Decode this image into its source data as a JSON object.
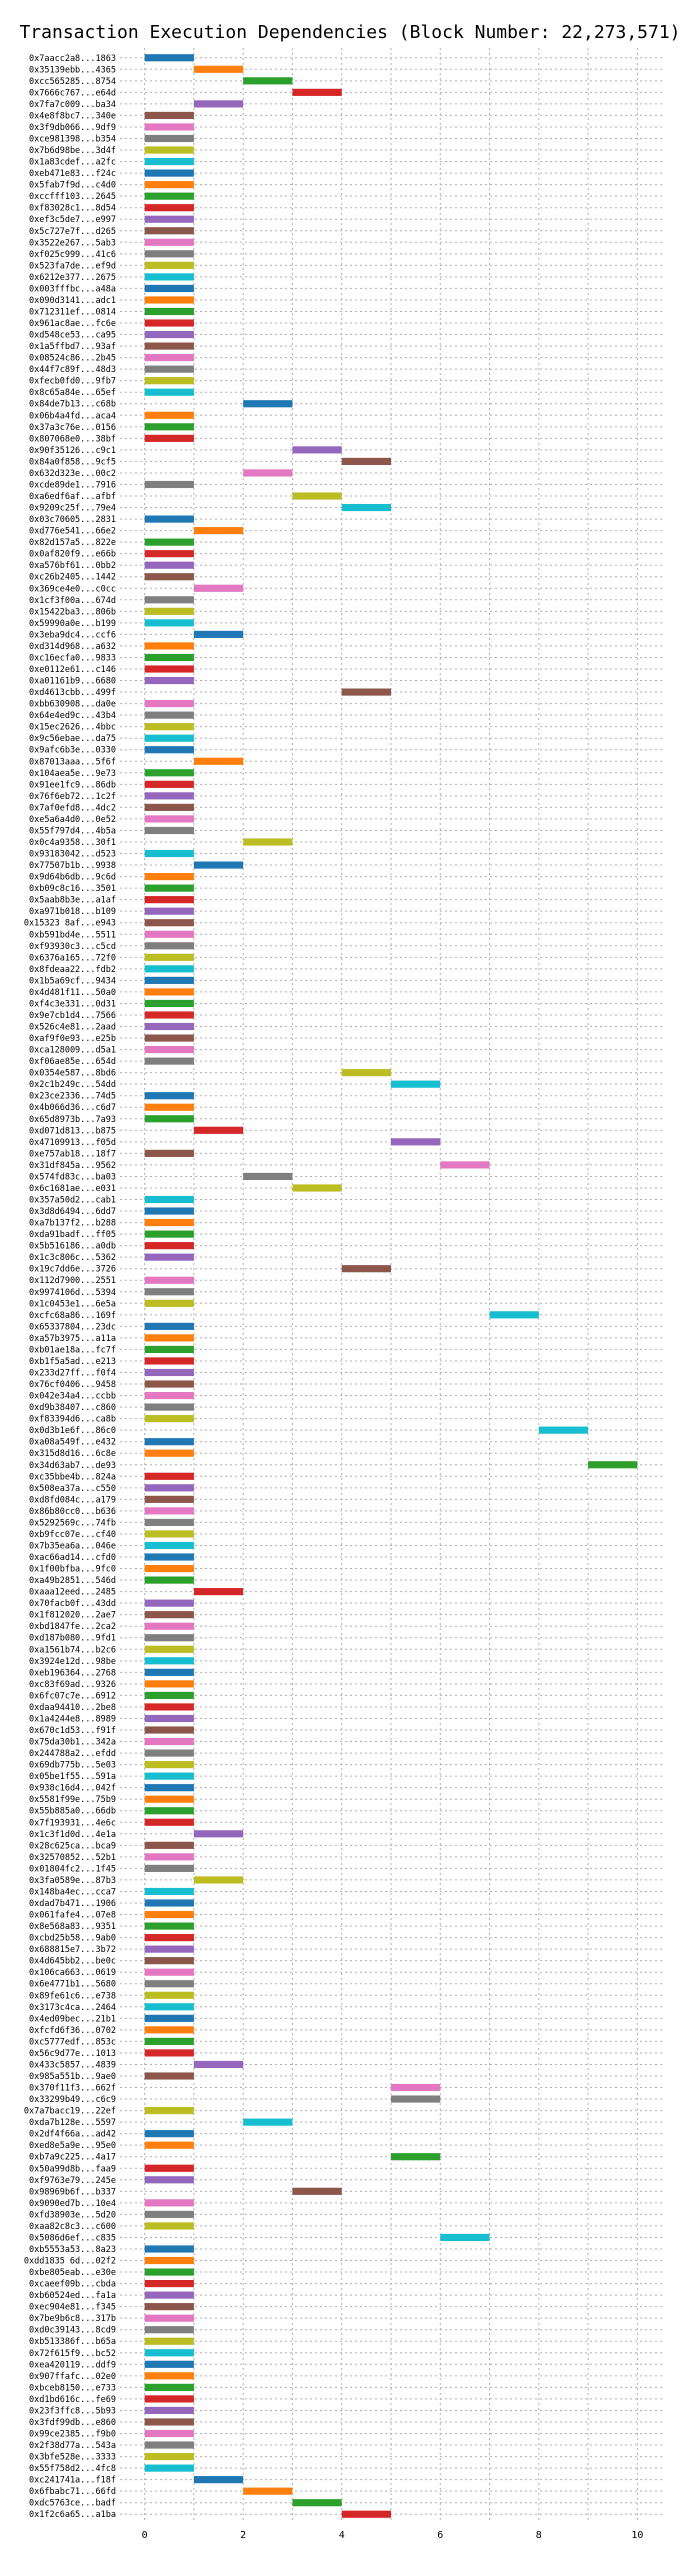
{
  "chart_data": {
    "type": "bar",
    "orientation": "horizontal-gantt",
    "title": "Transaction Execution Dependencies (Block Number: 22,273,571)",
    "xlabel": "",
    "ylabel": "",
    "xlim": [
      -0.5,
      10.5
    ],
    "xticks": [
      0,
      2,
      4,
      6,
      8,
      10
    ],
    "grid": true,
    "palette": [
      "#1f77b4",
      "#ff7f0e",
      "#2ca02c",
      "#d62728",
      "#9467bd",
      "#8c564b",
      "#e377c2",
      "#7f7f7f",
      "#bcbd22",
      "#17becf"
    ],
    "transactions": [
      {
        "label": "0x7aacc2a8...1863",
        "start": 0
      },
      {
        "label": "0x35139ebb...4365",
        "start": 1
      },
      {
        "label": "0xcc565285...8754",
        "start": 2
      },
      {
        "label": "0x7666c767...e64d",
        "start": 3
      },
      {
        "label": "0x7fa7c009...ba34",
        "start": 1
      },
      {
        "label": "0x4e8f8bc7...340e",
        "start": 0
      },
      {
        "label": "0x3f9db066...9df9",
        "start": 0
      },
      {
        "label": "0xce981398...b354",
        "start": 0
      },
      {
        "label": "0x7b6d98be...3d4f",
        "start": 0
      },
      {
        "label": "0x1a83cdef...a2fc",
        "start": 0
      },
      {
        "label": "0xeb471e83...f24c",
        "start": 0
      },
      {
        "label": "0x5fab7f9d...c4d0",
        "start": 0
      },
      {
        "label": "0xccfff103...2645",
        "start": 0
      },
      {
        "label": "0xf83028c1...8d54",
        "start": 0
      },
      {
        "label": "0xef3c5de7...e997",
        "start": 0
      },
      {
        "label": "0x5c727e7f...d265",
        "start": 0
      },
      {
        "label": "0x3522e267...5ab3",
        "start": 0
      },
      {
        "label": "0xf025c999...41c6",
        "start": 0
      },
      {
        "label": "0x523fa7de...ef9d",
        "start": 0
      },
      {
        "label": "0x6212e377...2675",
        "start": 0
      },
      {
        "label": "0x003fffbc...a48a",
        "start": 0
      },
      {
        "label": "0x090d3141...adc1",
        "start": 0
      },
      {
        "label": "0x712311ef...0814",
        "start": 0
      },
      {
        "label": "0x961ac8ae...fc6e",
        "start": 0
      },
      {
        "label": "0xd548ce53...ca95",
        "start": 0
      },
      {
        "label": "0x1a5ffbd7...93af",
        "start": 0
      },
      {
        "label": "0x08524c86...2b45",
        "start": 0
      },
      {
        "label": "0x44f7c89f...48d3",
        "start": 0
      },
      {
        "label": "0xfecb0fd0...9fb7",
        "start": 0
      },
      {
        "label": "0x8c65a84e...65ef",
        "start": 0
      },
      {
        "label": "0x84de7b13...c68b",
        "start": 2
      },
      {
        "label": "0x06b4a4fd...aca4",
        "start": 0
      },
      {
        "label": "0x37a3c76e...0156",
        "start": 0
      },
      {
        "label": "0x807068e0...38bf",
        "start": 0
      },
      {
        "label": "0x90f35126...c9c1",
        "start": 3
      },
      {
        "label": "0x84a0f858...9cf5",
        "start": 4
      },
      {
        "label": "0x632d323e...00c2",
        "start": 2
      },
      {
        "label": "0xcde89de1...7916",
        "start": 0
      },
      {
        "label": "0xa6edf6af...afbf",
        "start": 3
      },
      {
        "label": "0x9209c25f...79e4",
        "start": 4
      },
      {
        "label": "0x03c70605...2831",
        "start": 0
      },
      {
        "label": "0xd776e541...66e2",
        "start": 1
      },
      {
        "label": "0x82d157a5...822e",
        "start": 0
      },
      {
        "label": "0x0af820f9...e66b",
        "start": 0
      },
      {
        "label": "0xa576bf61...0bb2",
        "start": 0
      },
      {
        "label": "0xc26b2405...1442",
        "start": 0
      },
      {
        "label": "0x369ce4e0...c0cc",
        "start": 1
      },
      {
        "label": "0x1cf3f00a...674d",
        "start": 0
      },
      {
        "label": "0x15422ba3...806b",
        "start": 0
      },
      {
        "label": "0x59990a0e...b199",
        "start": 0
      },
      {
        "label": "0x3eba9dc4...ccf6",
        "start": 1
      },
      {
        "label": "0xd314d968...a632",
        "start": 0
      },
      {
        "label": "0xc16ecfa0...9833",
        "start": 0
      },
      {
        "label": "0xe0112e61...c146",
        "start": 0
      },
      {
        "label": "0xa01161b9...6680",
        "start": 0
      },
      {
        "label": "0xd4613cbb...499f",
        "start": 4
      },
      {
        "label": "0xbb630908...da0e",
        "start": 0
      },
      {
        "label": "0x64e4ed9c...43b4",
        "start": 0
      },
      {
        "label": "0x15ec2626...4bbc",
        "start": 0
      },
      {
        "label": "0x9c56ebae...da75",
        "start": 0
      },
      {
        "label": "0x9afc6b3e...0330",
        "start": 0
      },
      {
        "label": "0x87013aaa...5f6f",
        "start": 1
      },
      {
        "label": "0x104aea5e...9e73",
        "start": 0
      },
      {
        "label": "0x91ee1fc9...86db",
        "start": 0
      },
      {
        "label": "0x76f6eb72...1c2f",
        "start": 0
      },
      {
        "label": "0x7af0efd8...4dc2",
        "start": 0
      },
      {
        "label": "0xe5a6a4d0...0e52",
        "start": 0
      },
      {
        "label": "0x55f797d4...4b5a",
        "start": 0
      },
      {
        "label": "0x0c4a9358...30f1",
        "start": 2
      },
      {
        "label": "0x93183042...d523",
        "start": 0
      },
      {
        "label": "0x77507b1b...9938",
        "start": 1
      },
      {
        "label": "0x9d64b6db...9c6d",
        "start": 0
      },
      {
        "label": "0xb09c8c16...3501",
        "start": 0
      },
      {
        "label": "0x5aab8b3e...a1af",
        "start": 0
      },
      {
        "label": "0xa971b018...b109",
        "start": 0
      },
      {
        "label": "0x15323 8af...e943",
        "start": 0
      },
      {
        "label": "0xb591bd4e...5511",
        "start": 0
      },
      {
        "label": "0xf93930c3...c5cd",
        "start": 0
      },
      {
        "label": "0x6376a165...72f0",
        "start": 0
      },
      {
        "label": "0x8fdeaa22...fdb2",
        "start": 0
      },
      {
        "label": "0x1b5a69cf...9434",
        "start": 0
      },
      {
        "label": "0x4d481f11...50a0",
        "start": 0
      },
      {
        "label": "0xf4c3e331...0d31",
        "start": 0
      },
      {
        "label": "0x9e7cb1d4...7566",
        "start": 0
      },
      {
        "label": "0x526c4e81...2aad",
        "start": 0
      },
      {
        "label": "0xaf9f0e93...e25b",
        "start": 0
      },
      {
        "label": "0xca128009...d5a1",
        "start": 0
      },
      {
        "label": "0xf06ae85e...654d",
        "start": 0
      },
      {
        "label": "0x0354e587...8bd6",
        "start": 4
      },
      {
        "label": "0x2c1b249c...54dd",
        "start": 5
      },
      {
        "label": "0x23ce2336...74d5",
        "start": 0
      },
      {
        "label": "0x4b066d36...c6d7",
        "start": 0
      },
      {
        "label": "0x65d8973b...7a93",
        "start": 0
      },
      {
        "label": "0xd071d813...b875",
        "start": 1
      },
      {
        "label": "0x47109913...f05d",
        "start": 5
      },
      {
        "label": "0xe757ab18...18f7",
        "start": 0
      },
      {
        "label": "0x31df845a...9562",
        "start": 6
      },
      {
        "label": "0x574fd83c...ba03",
        "start": 2
      },
      {
        "label": "0x6c1681ae...e031",
        "start": 3
      },
      {
        "label": "0x357a50d2...cab1",
        "start": 0
      },
      {
        "label": "0x3d8d6494...6dd7",
        "start": 0
      },
      {
        "label": "0xa7b137f2...b288",
        "start": 0
      },
      {
        "label": "0xda91badf...ff05",
        "start": 0
      },
      {
        "label": "0x5b516186...a0db",
        "start": 0
      },
      {
        "label": "0x1c3c806c...5362",
        "start": 0
      },
      {
        "label": "0x19c7dd6e...3726",
        "start": 4
      },
      {
        "label": "0x112d7900...2551",
        "start": 0
      },
      {
        "label": "0x9974106d...5394",
        "start": 0
      },
      {
        "label": "0x1c0453e1...6e5a",
        "start": 0
      },
      {
        "label": "0xcfc68a86...169f",
        "start": 7
      },
      {
        "label": "0x65337804...23dc",
        "start": 0
      },
      {
        "label": "0xa57b3975...a11a",
        "start": 0
      },
      {
        "label": "0xb01ae18a...fc7f",
        "start": 0
      },
      {
        "label": "0xb1f5a5ad...e213",
        "start": 0
      },
      {
        "label": "0x233d27ff...f0f4",
        "start": 0
      },
      {
        "label": "0x76cf0406...9458",
        "start": 0
      },
      {
        "label": "0x042e34a4...ccbb",
        "start": 0
      },
      {
        "label": "0xd9b38407...c860",
        "start": 0
      },
      {
        "label": "0xf83394d6...ca8b",
        "start": 0
      },
      {
        "label": "0x0d3b1e6f...86c0",
        "start": 8
      },
      {
        "label": "0xa08a549f...e432",
        "start": 0
      },
      {
        "label": "0x315d8d16...6c8e",
        "start": 0
      },
      {
        "label": "0x34d63ab7...de93",
        "start": 9
      },
      {
        "label": "0xc35bbe4b...824a",
        "start": 0
      },
      {
        "label": "0x508ea37a...c550",
        "start": 0
      },
      {
        "label": "0xd8fd084c...a179",
        "start": 0
      },
      {
        "label": "0x86b80cc0...b636",
        "start": 0
      },
      {
        "label": "0x5292569c...74fb",
        "start": 0
      },
      {
        "label": "0xb9fcc07e...cf40",
        "start": 0
      },
      {
        "label": "0x7b35ea6a...046e",
        "start": 0
      },
      {
        "label": "0xac66ad14...cfd0",
        "start": 0
      },
      {
        "label": "0x1f00bfba...9fc0",
        "start": 0
      },
      {
        "label": "0xa49b2851...546d",
        "start": 0
      },
      {
        "label": "0xaaa12eed...2485",
        "start": 1
      },
      {
        "label": "0x70facb0f...43dd",
        "start": 0
      },
      {
        "label": "0x1f812020...2ae7",
        "start": 0
      },
      {
        "label": "0xbd1847fe...2ca2",
        "start": 0
      },
      {
        "label": "0xd187b080...9fd1",
        "start": 0
      },
      {
        "label": "0xa1561b74...b2c6",
        "start": 0
      },
      {
        "label": "0x3924e12d...98be",
        "start": 0
      },
      {
        "label": "0xeb196364...2768",
        "start": 0
      },
      {
        "label": "0xc83f69ad...9326",
        "start": 0
      },
      {
        "label": "0x6fc07c7e...6912",
        "start": 0
      },
      {
        "label": "0xdaa94410...2be8",
        "start": 0
      },
      {
        "label": "0x1a4244e8...8989",
        "start": 0
      },
      {
        "label": "0x670c1d53...f91f",
        "start": 0
      },
      {
        "label": "0x75da30b1...342a",
        "start": 0
      },
      {
        "label": "0x244788a2...efdd",
        "start": 0
      },
      {
        "label": "0x69db775b...5e03",
        "start": 0
      },
      {
        "label": "0x05be1f55...591a",
        "start": 0
      },
      {
        "label": "0x938c16d4...042f",
        "start": 0
      },
      {
        "label": "0x5581f99e...75b9",
        "start": 0
      },
      {
        "label": "0x55b885a0...66db",
        "start": 0
      },
      {
        "label": "0x7f193931...4e6c",
        "start": 0
      },
      {
        "label": "0x1c3f1d0d...4e1a",
        "start": 1
      },
      {
        "label": "0x28c625ca...bca9",
        "start": 0
      },
      {
        "label": "0x32570852...52b1",
        "start": 0
      },
      {
        "label": "0x01804fc2...1f45",
        "start": 0
      },
      {
        "label": "0x3fa0589e...87b3",
        "start": 1
      },
      {
        "label": "0x148ba4ec...cca7",
        "start": 0
      },
      {
        "label": "0xdad7b471...1906",
        "start": 0
      },
      {
        "label": "0x061fafe4...07e8",
        "start": 0
      },
      {
        "label": "0x8e568a83...9351",
        "start": 0
      },
      {
        "label": "0xcbd25b58...9ab0",
        "start": 0
      },
      {
        "label": "0x688815e7...3b72",
        "start": 0
      },
      {
        "label": "0x4d645bb2...be0c",
        "start": 0
      },
      {
        "label": "0x106ca663...0619",
        "start": 0
      },
      {
        "label": "0x6e4771b1...5680",
        "start": 0
      },
      {
        "label": "0x89fe61c6...e738",
        "start": 0
      },
      {
        "label": "0x3173c4ca...2464",
        "start": 0
      },
      {
        "label": "0x4ed09bec...21b1",
        "start": 0
      },
      {
        "label": "0xfcfd6f36...0702",
        "start": 0
      },
      {
        "label": "0xc5777edf...853c",
        "start": 0
      },
      {
        "label": "0x56c9d77e...1013",
        "start": 0
      },
      {
        "label": "0x433c5857...4839",
        "start": 1
      },
      {
        "label": "0x985a551b...9ae0",
        "start": 0
      },
      {
        "label": "0x370f11f3...662f",
        "start": 5
      },
      {
        "label": "0x33299b49...c6c9",
        "start": 5
      },
      {
        "label": "0x7a7bacc19...22ef",
        "start": 0
      },
      {
        "label": "0xda7b128e...5597",
        "start": 2
      },
      {
        "label": "0x2df4f66a...ad42",
        "start": 0
      },
      {
        "label": "0xed8e5a9e...95e0",
        "start": 0
      },
      {
        "label": "0xb7a9c225...4a17",
        "start": 5
      },
      {
        "label": "0x50a99d8b...faa9",
        "start": 0
      },
      {
        "label": "0xf9763e79...245e",
        "start": 0
      },
      {
        "label": "0x98969b6f...b337",
        "start": 3
      },
      {
        "label": "0x9090ed7b...10e4",
        "start": 0
      },
      {
        "label": "0xfd38903e...5d20",
        "start": 0
      },
      {
        "label": "0xaa82c8c3...c600",
        "start": 0
      },
      {
        "label": "0x5086d6ef...c835",
        "start": 6
      },
      {
        "label": "0xb5553a53...8a23",
        "start": 0
      },
      {
        "label": "0xdd1835 6d...02f2",
        "start": 0
      },
      {
        "label": "0xbe805eab...e30e",
        "start": 0
      },
      {
        "label": "0xcaeef09b...cbda",
        "start": 0
      },
      {
        "label": "0xb60524ed...fa1a",
        "start": 0
      },
      {
        "label": "0xec904e81...f345",
        "start": 0
      },
      {
        "label": "0x7be9b6c8...317b",
        "start": 0
      },
      {
        "label": "0xd0c39143...8cd9",
        "start": 0
      },
      {
        "label": "0xb513386f...b65a",
        "start": 0
      },
      {
        "label": "0x72f615f9...bc52",
        "start": 0
      },
      {
        "label": "0xea420119...ddf9",
        "start": 0
      },
      {
        "label": "0x907ffafc...02e0",
        "start": 0
      },
      {
        "label": "0xbceb8150...e733",
        "start": 0
      },
      {
        "label": "0xd1bd616c...fe69",
        "start": 0
      },
      {
        "label": "0x23f3ffc8...5b93",
        "start": 0
      },
      {
        "label": "0x3fdf99db...e860",
        "start": 0
      },
      {
        "label": "0x99ce2385...f9b0",
        "start": 0
      },
      {
        "label": "0x2f38d77a...543a",
        "start": 0
      },
      {
        "label": "0x3bfe528e...3333",
        "start": 0
      },
      {
        "label": "0x55f758d2...4fc8",
        "start": 0
      },
      {
        "label": "0xc241741a...f18f",
        "start": 1
      },
      {
        "label": "0x6fbabc71...66fd",
        "start": 2
      },
      {
        "label": "0xdc5763ce...badf",
        "start": 3
      },
      {
        "label": "0x1f2c6a65...a1ba",
        "start": 4
      }
    ]
  }
}
